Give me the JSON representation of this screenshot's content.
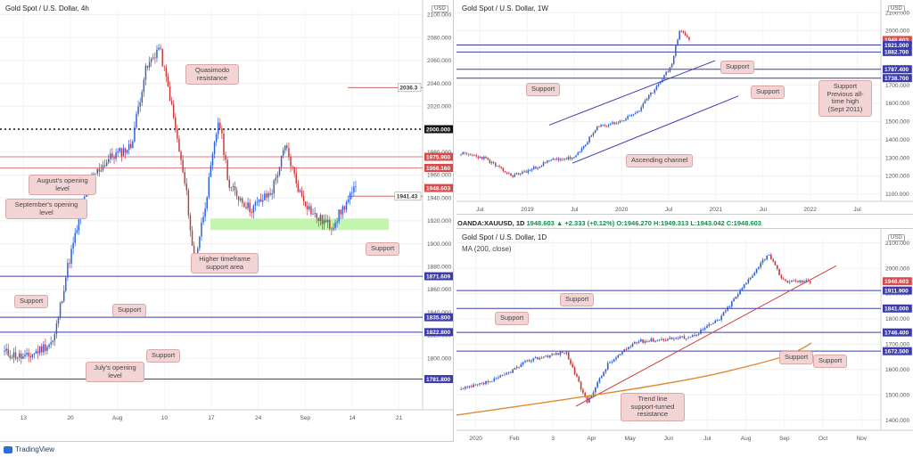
{
  "footer": {
    "brand": "TradingView"
  },
  "ohlc_bar": {
    "symbol": "OANDA:XAUUSD, 1D",
    "values": "1948.603 ▲ +2.333 (+0.12%) O:1946.270 H:1949.313 L:1943.042 C:1948.603"
  },
  "colors": {
    "support": "#3b3bb0",
    "resistance": "#e08080",
    "accent_green": "#b9f4a0",
    "ma": "#e08a30",
    "trend": "#d04040",
    "up": "#2d5fd6",
    "down": "#c43a3a"
  },
  "chart_data": [
    {
      "id": "h4",
      "type": "candlestick",
      "title": "Gold Spot / U.S. Dollar, 4h",
      "currency": "USD",
      "ylim": [
        1755,
        2105
      ],
      "yticks": [
        1780,
        1800,
        1820,
        1840,
        1860,
        1880,
        1900,
        1920,
        1940,
        1960,
        1980,
        2000,
        2020,
        2040,
        2060,
        2080,
        2100
      ],
      "xticks": [
        "13",
        "20",
        "Aug",
        "10",
        "17",
        "24",
        "Sep",
        "14",
        "21"
      ],
      "price_labels": [
        {
          "value": 2036.3,
          "label": "2036.3",
          "style": "light"
        },
        {
          "value": 2000.0,
          "label": "2000.000",
          "style": "dark"
        },
        {
          "value": 1975.9,
          "label": "1975.900",
          "style": "resistance"
        },
        {
          "value": 1966.16,
          "label": "1966.160",
          "style": "resistance"
        },
        {
          "value": 1948.603,
          "label": "1948.603",
          "style": "current"
        },
        {
          "value": 1941.43,
          "label": "1941.43",
          "style": "light"
        },
        {
          "value": 1871.609,
          "label": "1871.609",
          "style": "support"
        },
        {
          "value": 1835.8,
          "label": "1835.800",
          "style": "support"
        },
        {
          "value": 1822.8,
          "label": "1822.800",
          "style": "support"
        },
        {
          "value": 1781.8,
          "label": "1781.800",
          "style": "support"
        }
      ],
      "zone": {
        "from": 1912,
        "to": 1922
      },
      "annotations": [
        "Quasimodo resistance",
        "August's opening level",
        "September's opening level",
        "Higher timeframe support area",
        "Support",
        "Support",
        "Support",
        "Support",
        "July's opening level"
      ]
    },
    {
      "id": "w1",
      "type": "candlestick",
      "title": "Gold Spot / U.S. Dollar, 1W",
      "currency": "USD",
      "ylim": [
        1060,
        2120
      ],
      "yticks": [
        1100,
        1200,
        1300,
        1400,
        1500,
        1600,
        1700,
        1800,
        1900,
        2000,
        2100
      ],
      "xticks": [
        "Jul",
        "2019",
        "Jul",
        "2020",
        "Jul",
        "2021",
        "Jul",
        "2022",
        "Jul"
      ],
      "price_labels": [
        {
          "value": 1948.603,
          "label": "1948.603",
          "style": "current"
        },
        {
          "value": 1921.0,
          "label": "1921.000",
          "style": "support"
        },
        {
          "value": 1882.7,
          "label": "1882.700",
          "style": "support"
        },
        {
          "value": 1787.4,
          "label": "1787.400",
          "style": "support"
        },
        {
          "value": 1738.7,
          "label": "1738.700",
          "style": "support"
        }
      ],
      "annotations": [
        "Support",
        "Support",
        "Support",
        "Support Previous all-time high (Sept 2011)",
        "Ascending channel"
      ]
    },
    {
      "id": "d1",
      "type": "candlestick",
      "title": "Gold Spot / U.S. Dollar, 1D",
      "subtitle": "MA (200, close)",
      "currency": "USD",
      "ylim": [
        1360,
        2120
      ],
      "yticks": [
        1400,
        1500,
        1600,
        1700,
        1800,
        1900,
        2000,
        2100
      ],
      "xticks": [
        "2020",
        "Feb",
        "3",
        "Apr",
        "May",
        "Jun",
        "Jul",
        "Aug",
        "Sep",
        "Oct",
        "Nov"
      ],
      "price_labels": [
        {
          "value": 1948.603,
          "label": "1948.603",
          "style": "current"
        },
        {
          "value": 1911.9,
          "label": "1911.900",
          "style": "support"
        },
        {
          "value": 1841.0,
          "label": "1841.000",
          "style": "support"
        },
        {
          "value": 1746.4,
          "label": "1746.400",
          "style": "support"
        },
        {
          "value": 1672.5,
          "label": "1672.500",
          "style": "support"
        }
      ],
      "annotations": [
        "Support",
        "Support",
        "Trend line support-turned resistance",
        "Support",
        "Support"
      ]
    }
  ]
}
